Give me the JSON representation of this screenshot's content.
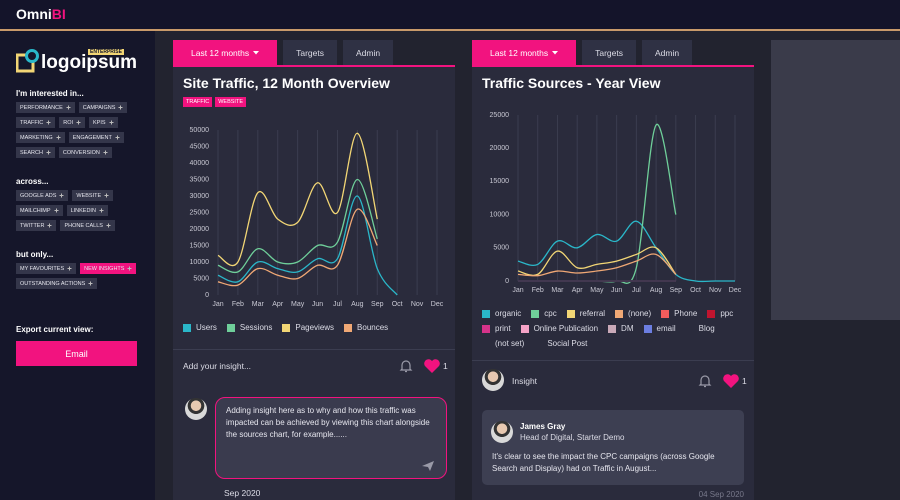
{
  "header": {
    "brand": "Omni",
    "brand_accent": "BI"
  },
  "sidebar": {
    "logo": "logoipsum",
    "logo_badge": "ENTERPRISE",
    "sections": [
      {
        "heading": "I'm interested in...",
        "tags": [
          "PERFORMANCE",
          "CAMPAIGNS",
          "TRAFFIC",
          "ROI",
          "KPIS",
          "MARKETING",
          "ENGAGEMENT",
          "SEARCH",
          "CONVERSION"
        ]
      },
      {
        "heading": "across...",
        "tags": [
          "GOOGLE ADS",
          "WEBSITE",
          "MAILCHIMP",
          "LINKEDIN",
          "TWITTER",
          "PHONE CALLS"
        ]
      },
      {
        "heading": "but only...",
        "tags": [
          "MY FAVOURITES",
          "NEW INSIGHTS",
          "OUTSTANDING ACTIONS"
        ],
        "active": 1
      }
    ],
    "export_label": "Export current view:",
    "export_button": "Email"
  },
  "panels": [
    {
      "tabs": [
        "Last 12 months",
        "Targets",
        "Admin"
      ],
      "active_tab": 0,
      "title": "Site Traffic, 12 Month Overview",
      "tags": [
        "TRAFFIC",
        "WEBSITE"
      ],
      "insight_prompt": "Add your insight...",
      "likes": 1,
      "comment": {
        "text": "Adding insight here as to why and how this traffic was impacted can be achieved by viewing this chart alongside the sources chart, for example......",
        "date": "Sep 2020"
      }
    },
    {
      "tabs": [
        "Last 12 months",
        "Targets",
        "Admin"
      ],
      "active_tab": 0,
      "title": "Traffic Sources - Year View",
      "insight_label": "Insight",
      "likes": 1,
      "comment": {
        "author": "James Gray",
        "role": "Head of Digital, Starter Demo",
        "text": "It's clear to see the impact the CPC campaigns (across Google Search and Display) had on Traffic in August...",
        "date": "04 Sep 2020"
      }
    }
  ],
  "chart_data": [
    {
      "type": "line",
      "categories": [
        "Jan",
        "Feb",
        "Mar",
        "Apr",
        "May",
        "Jun",
        "Jul",
        "Aug",
        "Sep",
        "Oct",
        "Nov",
        "Dec"
      ],
      "ylim": [
        0,
        50000
      ],
      "yticks": [
        0,
        5000,
        10000,
        15000,
        20000,
        25000,
        30000,
        35000,
        40000,
        45000,
        50000
      ],
      "grid": true,
      "series": [
        {
          "name": "Users",
          "color": "#2ab7c9",
          "values": [
            6000,
            4000,
            10000,
            8000,
            7000,
            11000,
            11000,
            30000,
            8000,
            0,
            null,
            null
          ]
        },
        {
          "name": "Sessions",
          "color": "#6fcf9a",
          "values": [
            9000,
            7000,
            14000,
            10000,
            10000,
            15000,
            16000,
            35000,
            17000,
            null,
            null,
            null
          ]
        },
        {
          "name": "Pageviews",
          "color": "#f2d675",
          "values": [
            12000,
            10000,
            31000,
            23000,
            22000,
            34000,
            25000,
            49000,
            23000,
            null,
            null,
            null
          ]
        },
        {
          "name": "Bounces",
          "color": "#f0a875",
          "values": [
            4000,
            3000,
            8000,
            6000,
            5000,
            9000,
            9000,
            26000,
            15000,
            null,
            null,
            null
          ]
        }
      ]
    },
    {
      "type": "line",
      "categories": [
        "Jan",
        "Feb",
        "Mar",
        "Apr",
        "May",
        "Jun",
        "Jul",
        "Aug",
        "Sep",
        "Oct",
        "Nov",
        "Dec"
      ],
      "ylim": [
        0,
        25000
      ],
      "yticks": [
        0,
        5000,
        10000,
        15000,
        20000,
        25000
      ],
      "grid": true,
      "series": [
        {
          "name": "organic",
          "color": "#2ab7c9",
          "values": [
            3000,
            2500,
            6000,
            5000,
            7000,
            6000,
            9000,
            5000,
            1000,
            0,
            0,
            0
          ]
        },
        {
          "name": "cpc",
          "color": "#6fcf9a",
          "values": [
            0,
            0,
            0,
            0,
            0,
            0,
            2000,
            23500,
            10000,
            null,
            null,
            null
          ]
        },
        {
          "name": "referral",
          "color": "#f2d675",
          "values": [
            1500,
            1000,
            4500,
            2000,
            2500,
            3000,
            4000,
            5000,
            1000,
            null,
            null,
            null
          ]
        },
        {
          "name": "(none)",
          "color": "#f0a875",
          "values": [
            1000,
            800,
            1500,
            1200,
            1500,
            2000,
            3000,
            4000,
            1000,
            null,
            null,
            null
          ]
        },
        {
          "name": "Phone",
          "color": "#f25c5c",
          "values": [
            0,
            0,
            0,
            0,
            0,
            0,
            0,
            0,
            0,
            null,
            null,
            null
          ]
        },
        {
          "name": "ppc",
          "color": "#c0152f",
          "values": [
            0,
            0,
            0,
            0,
            0,
            0,
            0,
            0,
            0,
            null,
            null,
            null
          ]
        },
        {
          "name": "print",
          "color": "#d6338a",
          "values": [
            0,
            0,
            0,
            0,
            0,
            0,
            0,
            0,
            0,
            null,
            null,
            null
          ]
        },
        {
          "name": "Online Publication",
          "color": "#f5a3c7",
          "values": [
            0,
            0,
            0,
            0,
            0,
            0,
            0,
            0,
            0,
            null,
            null,
            null
          ]
        },
        {
          "name": "DM",
          "color": "#c9a9b8",
          "values": [
            0,
            0,
            0,
            0,
            0,
            0,
            0,
            0,
            0,
            null,
            null,
            null
          ]
        },
        {
          "name": "email",
          "color": "#6c7ee1",
          "values": [
            0,
            0,
            0,
            0,
            0,
            0,
            0,
            0,
            0,
            null,
            null,
            null
          ]
        },
        {
          "name": "Blog",
          "color": "#2a2b3c",
          "values": [
            0,
            0,
            0,
            0,
            0,
            0,
            0,
            0,
            0,
            null,
            null,
            null
          ]
        },
        {
          "name": "(not set)",
          "color": "#2a2b3c",
          "values": [
            0,
            0,
            0,
            0,
            0,
            0,
            0,
            0,
            0,
            null,
            null,
            null
          ]
        },
        {
          "name": "Social Post",
          "color": "#2a2b3c",
          "values": [
            0,
            0,
            0,
            0,
            0,
            0,
            0,
            0,
            0,
            null,
            null,
            null
          ]
        }
      ]
    }
  ]
}
